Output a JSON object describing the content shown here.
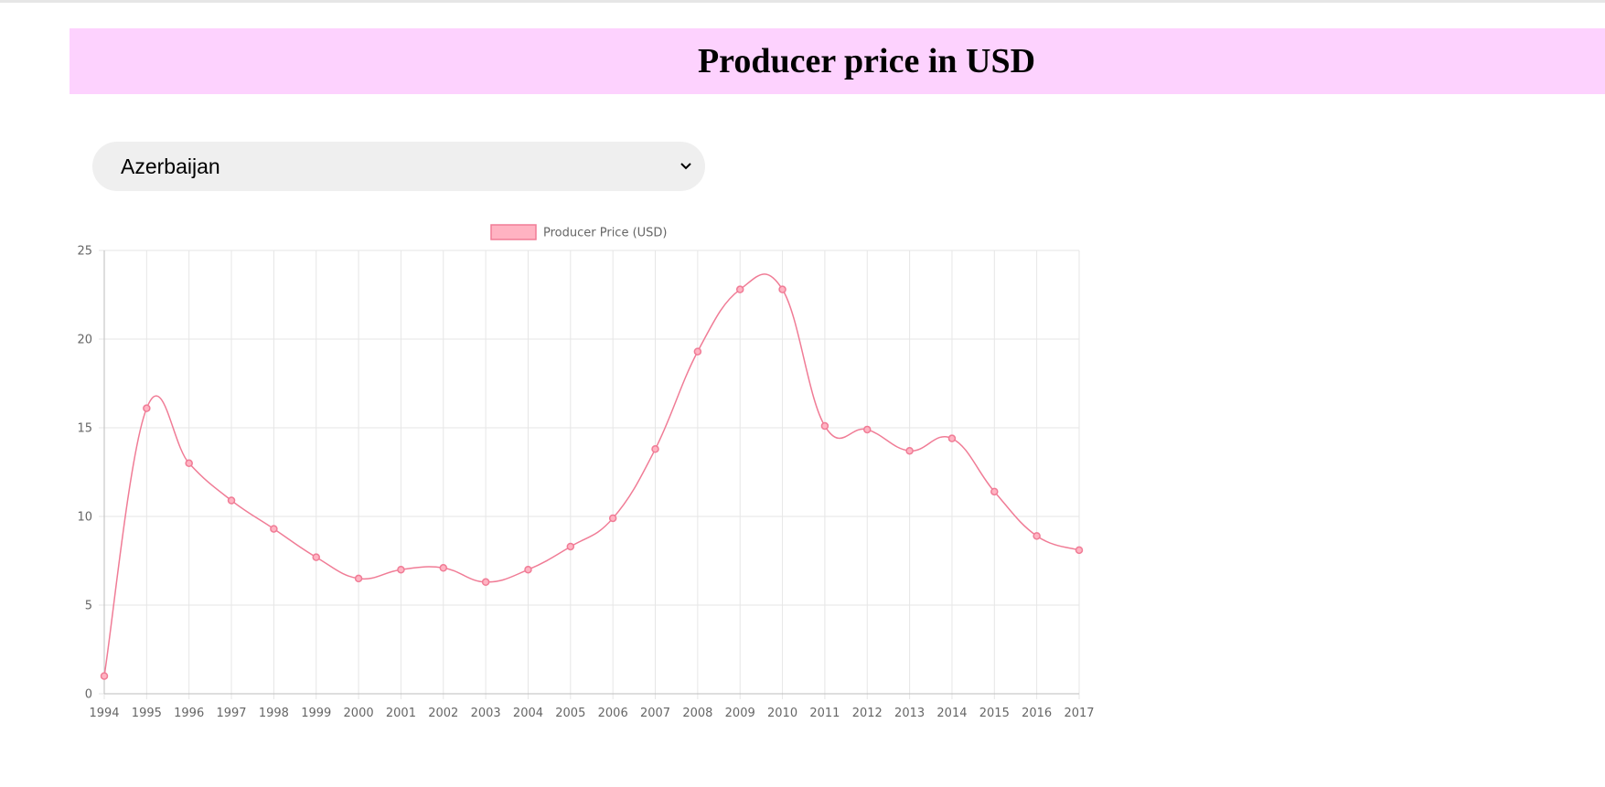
{
  "page": {
    "title": "Producer price in USD"
  },
  "selector": {
    "selected": "Azerbaijan"
  },
  "colors": {
    "banner": "#fdd2fe",
    "line": "#f07c96",
    "legend_fill": "#ffb3c2"
  },
  "icons": {
    "dropdown": "chevron-down-icon"
  },
  "chart_data": {
    "type": "line",
    "legend": "Producer Price (USD)",
    "legend_position": "top",
    "x": [
      "1994",
      "1995",
      "1996",
      "1997",
      "1998",
      "1999",
      "2000",
      "2001",
      "2002",
      "2003",
      "2004",
      "2005",
      "2006",
      "2007",
      "2008",
      "2009",
      "2010",
      "2011",
      "2012",
      "2013",
      "2014",
      "2015",
      "2016",
      "2017"
    ],
    "series": [
      {
        "name": "Producer Price (USD)",
        "values": [
          1.0,
          16.1,
          13.0,
          10.9,
          9.3,
          7.7,
          6.5,
          7.0,
          7.1,
          6.3,
          7.0,
          8.3,
          9.9,
          13.8,
          19.3,
          22.8,
          22.8,
          15.1,
          14.9,
          13.7,
          14.4,
          11.4,
          8.9,
          8.1
        ]
      }
    ],
    "ylim": [
      0,
      25
    ],
    "yticks": [
      "0",
      "5",
      "10",
      "15",
      "20",
      "25"
    ],
    "grid": true
  }
}
